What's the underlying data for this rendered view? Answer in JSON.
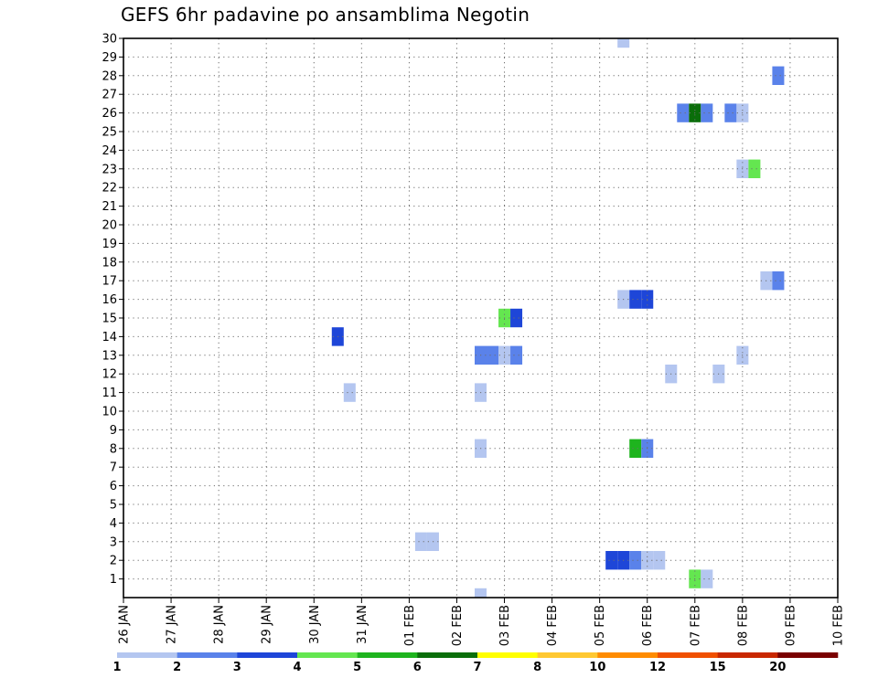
{
  "chart_data": {
    "type": "heatmap",
    "title": "GEFS 6hr padavine po ansamblima Negotin",
    "xlabel": "",
    "ylabel": "",
    "x_tick_labels": [
      "26 JAN",
      "27 JAN",
      "28 JAN",
      "29 JAN",
      "30 JAN",
      "31 JAN",
      "01 FEB",
      "02 FEB",
      "03 FEB",
      "04 FEB",
      "05 FEB",
      "06 FEB",
      "07 FEB",
      "08 FEB",
      "09 FEB",
      "10 FEB"
    ],
    "y_tick_labels": [
      "1",
      "2",
      "3",
      "4",
      "5",
      "6",
      "7",
      "8",
      "9",
      "10",
      "11",
      "12",
      "13",
      "14",
      "15",
      "16",
      "17",
      "18",
      "19",
      "20",
      "21",
      "22",
      "23",
      "24",
      "25",
      "26",
      "27",
      "28",
      "29",
      "30"
    ],
    "xlim": [
      0,
      15
    ],
    "ylim": [
      0,
      30
    ],
    "grid": "dotted",
    "cell_width_days": 0.25,
    "colorbar": {
      "placement": "bottom",
      "labels": [
        "1",
        "2",
        "3",
        "4",
        "5",
        "6",
        "7",
        "8",
        "10",
        "12",
        "15",
        "20"
      ],
      "colors": [
        "#b4c6f0",
        "#5a82ea",
        "#1e46d8",
        "#64e650",
        "#1eb41e",
        "#0a6e0a",
        "#ffff00",
        "#ffc832",
        "#ff8c00",
        "#f05000",
        "#c82800",
        "#7a0000"
      ]
    },
    "cells": [
      {
        "day": 7.5,
        "member": 0,
        "level": 0
      },
      {
        "day": 6.25,
        "member": 3,
        "level": 0
      },
      {
        "day": 6.5,
        "member": 3,
        "level": 0
      },
      {
        "day": 10.25,
        "member": 2,
        "level": 2
      },
      {
        "day": 10.5,
        "member": 2,
        "level": 2
      },
      {
        "day": 10.75,
        "member": 2,
        "level": 1
      },
      {
        "day": 11.0,
        "member": 2,
        "level": 0
      },
      {
        "day": 11.25,
        "member": 2,
        "level": 0
      },
      {
        "day": 12.0,
        "member": 1,
        "level": 3
      },
      {
        "day": 12.25,
        "member": 1,
        "level": 0
      },
      {
        "day": 7.5,
        "member": 8,
        "level": 0
      },
      {
        "day": 10.75,
        "member": 8,
        "level": 4
      },
      {
        "day": 11.0,
        "member": 8,
        "level": 1
      },
      {
        "day": 4.75,
        "member": 11,
        "level": 0
      },
      {
        "day": 7.5,
        "member": 11,
        "level": 0
      },
      {
        "day": 11.5,
        "member": 12,
        "level": 0
      },
      {
        "day": 12.5,
        "member": 12,
        "level": 0
      },
      {
        "day": 7.5,
        "member": 13,
        "level": 1
      },
      {
        "day": 7.75,
        "member": 13,
        "level": 1
      },
      {
        "day": 8.0,
        "member": 13,
        "level": 0
      },
      {
        "day": 8.25,
        "member": 13,
        "level": 1
      },
      {
        "day": 13.0,
        "member": 13,
        "level": 0
      },
      {
        "day": 4.5,
        "member": 14,
        "level": 2
      },
      {
        "day": 8.0,
        "member": 15,
        "level": 3
      },
      {
        "day": 8.25,
        "member": 15,
        "level": 2
      },
      {
        "day": 10.5,
        "member": 16,
        "level": 0
      },
      {
        "day": 10.75,
        "member": 16,
        "level": 2
      },
      {
        "day": 11.0,
        "member": 16,
        "level": 2
      },
      {
        "day": 13.5,
        "member": 17,
        "level": 0
      },
      {
        "day": 13.75,
        "member": 17,
        "level": 1
      },
      {
        "day": 13.0,
        "member": 23,
        "level": 0
      },
      {
        "day": 13.25,
        "member": 23,
        "level": 3
      },
      {
        "day": 11.75,
        "member": 26,
        "level": 1
      },
      {
        "day": 12.0,
        "member": 26,
        "level": 5
      },
      {
        "day": 12.25,
        "member": 26,
        "level": 1
      },
      {
        "day": 12.75,
        "member": 26,
        "level": 1
      },
      {
        "day": 13.0,
        "member": 26,
        "level": 0
      },
      {
        "day": 13.75,
        "member": 28,
        "level": 1
      },
      {
        "day": 10.5,
        "member": 30,
        "level": 0
      }
    ]
  }
}
